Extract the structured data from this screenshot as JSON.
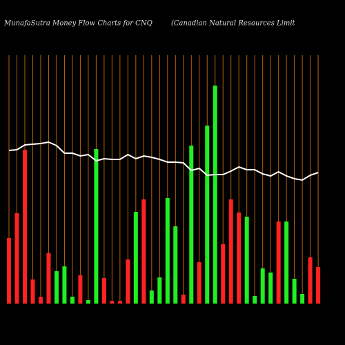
{
  "chart_data": {
    "type": "bar",
    "title": "MunafaSutra  Money Flow  Charts for CNQ",
    "subtitle": "(Canadian  Natural Resources Limit",
    "categories": [
      null,
      null,
      null,
      null,
      null,
      null,
      null,
      null,
      null,
      null,
      null,
      null,
      null,
      null,
      null,
      null,
      null,
      null,
      null,
      null,
      null,
      null,
      null,
      null,
      null,
      null,
      null,
      null,
      null,
      null,
      null,
      null,
      null,
      null,
      null,
      null,
      null,
      null,
      null,
      null
    ],
    "values": [
      95,
      131,
      223,
      35,
      10,
      73,
      47,
      54,
      10,
      41,
      5,
      224,
      37,
      4,
      4,
      64,
      133,
      151,
      19,
      38,
      153,
      112,
      13,
      229,
      60,
      258,
      316,
      86,
      151,
      132,
      126,
      11,
      51,
      45,
      119,
      119,
      36,
      14,
      67,
      53
    ],
    "colors": [
      "#ff2222",
      "#ff2222",
      "#ff2222",
      "#ff2222",
      "#ff2222",
      "#ff2222",
      "#22ee22",
      "#22ee22",
      "#22ee22",
      "#ff2222",
      "#22ee22",
      "#22ee22",
      "#ff2222",
      "#ff2222",
      "#ff2222",
      "#ff2222",
      "#22ee22",
      "#ff2222",
      "#22ee22",
      "#22ee22",
      "#22ee22",
      "#22ee22",
      "#ff2222",
      "#22ee22",
      "#ff2222",
      "#22ee22",
      "#22ee22",
      "#ff2222",
      "#ff2222",
      "#ff2222",
      "#22ee22",
      "#22ee22",
      "#22ee22",
      "#22ee22",
      "#ff2222",
      "#22ee22",
      "#22ee22",
      "#22ee22",
      "#ff2222",
      "#ff2222"
    ],
    "line_values": [
      222,
      223,
      230,
      231,
      232,
      234,
      229,
      218,
      218,
      214,
      216,
      207,
      210,
      209,
      209,
      216,
      210,
      214,
      212,
      209,
      205,
      205,
      204,
      193,
      196,
      186,
      187,
      187,
      192,
      198,
      194,
      194,
      188,
      185,
      191,
      185,
      181,
      179,
      186,
      190
    ],
    "line_color": "#ffffff",
    "grid": true,
    "grid_color": "#b8620e",
    "ylim": [
      0,
      360
    ]
  }
}
